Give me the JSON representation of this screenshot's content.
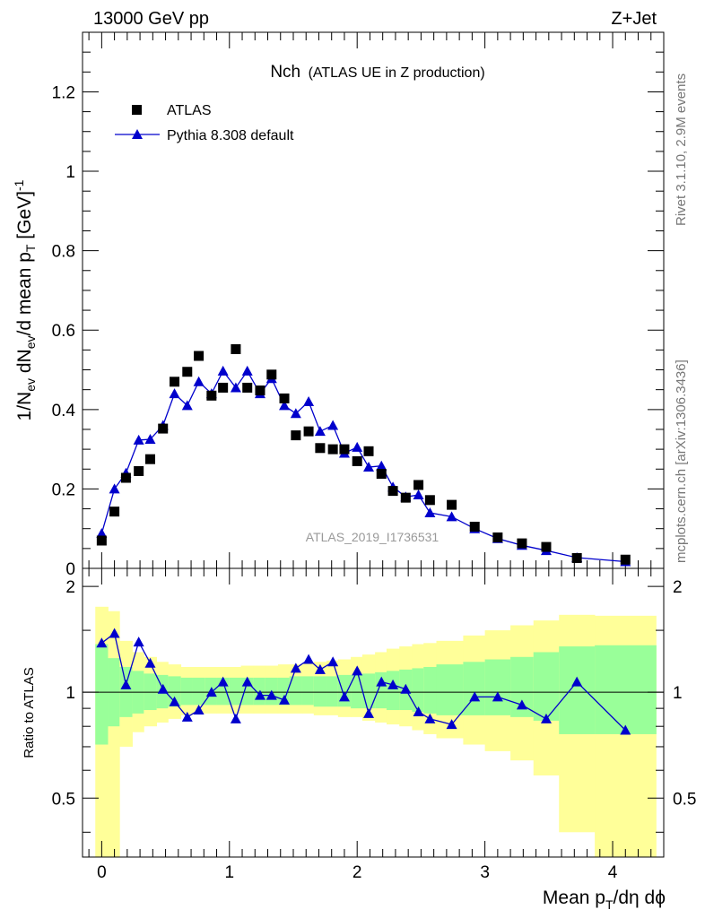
{
  "header": {
    "left": "13000 GeV pp",
    "right": "Z+Jet"
  },
  "side_labels": {
    "rivet": "Rivet 3.1.10,  2.9M events",
    "mcplots": "mcplots.cern.ch [arXiv:1306.3436]"
  },
  "reference_tag": "ATLAS_2019_I1736531",
  "colors": {
    "mc": "#0000cc",
    "data": "#000000",
    "band_inner": "#99ff99",
    "band_outer": "#ffff99"
  },
  "chart_data": [
    {
      "type": "scatter",
      "title_main": "Nch",
      "title_sub": "(ATLAS UE in Z production)",
      "xlabel": "Mean p_T/dη dφ",
      "ylabel": "1/N_ev dN_ev/d mean p_T [GeV]^-1",
      "xlim": [
        -0.15,
        4.4
      ],
      "ylim": [
        0,
        1.35
      ],
      "yticks": [
        0,
        0.2,
        0.4,
        0.6,
        0.8,
        1,
        1.2
      ],
      "ytick_labels": [
        "0",
        "0.2",
        "0.4",
        "0.6",
        "0.8",
        "1",
        "1.2"
      ],
      "legend_placement": "top-left",
      "series": [
        {
          "name": "ATLAS",
          "marker": "square",
          "x": [
            0.0,
            0.1,
            0.19,
            0.29,
            0.38,
            0.48,
            0.57,
            0.67,
            0.76,
            0.86,
            0.95,
            1.05,
            1.14,
            1.24,
            1.33,
            1.43,
            1.52,
            1.62,
            1.71,
            1.81,
            1.9,
            2.0,
            2.09,
            2.19,
            2.28,
            2.38,
            2.48,
            2.57,
            2.74,
            2.92,
            3.1,
            3.29,
            3.48,
            3.72,
            4.1
          ],
          "y": [
            0.07,
            0.143,
            0.228,
            0.245,
            0.275,
            0.352,
            0.47,
            0.495,
            0.535,
            0.435,
            0.455,
            0.552,
            0.455,
            0.448,
            0.488,
            0.428,
            0.335,
            0.345,
            0.303,
            0.3,
            0.3,
            0.27,
            0.295,
            0.238,
            0.195,
            0.178,
            0.21,
            0.172,
            0.16,
            0.105,
            0.078,
            0.063,
            0.054,
            0.026,
            0.022
          ]
        },
        {
          "name": "Pythia 8.308 default",
          "marker": "triangle",
          "x": [
            0.0,
            0.1,
            0.19,
            0.29,
            0.38,
            0.48,
            0.57,
            0.67,
            0.76,
            0.86,
            0.95,
            1.05,
            1.14,
            1.24,
            1.33,
            1.43,
            1.52,
            1.62,
            1.71,
            1.81,
            1.9,
            2.0,
            2.09,
            2.19,
            2.28,
            2.38,
            2.48,
            2.57,
            2.74,
            2.92,
            3.1,
            3.29,
            3.48,
            3.72,
            4.1
          ],
          "y": [
            0.088,
            0.2,
            0.24,
            0.323,
            0.325,
            0.36,
            0.44,
            0.41,
            0.47,
            0.44,
            0.497,
            0.455,
            0.497,
            0.44,
            0.478,
            0.41,
            0.39,
            0.42,
            0.345,
            0.36,
            0.29,
            0.305,
            0.255,
            0.258,
            0.205,
            0.18,
            0.185,
            0.14,
            0.13,
            0.1,
            0.075,
            0.058,
            0.045,
            0.027,
            0.017
          ]
        }
      ]
    },
    {
      "type": "line",
      "ylabel": "Ratio to ATLAS",
      "xlabel": "Mean p_T/dη dφ",
      "xlim": [
        -0.15,
        4.4
      ],
      "ylim": [
        0.34,
        2.25
      ],
      "yscale": "log",
      "yticks": [
        0.5,
        1,
        2
      ],
      "ytick_labels": [
        "0.5",
        "1",
        "2"
      ],
      "xticks": [
        0,
        1,
        2,
        3,
        4
      ],
      "xtick_labels": [
        "0",
        "1",
        "2",
        "3",
        "4"
      ],
      "reference_line": 1,
      "bins": [
        -0.05,
        0.05,
        0.14,
        0.24,
        0.33,
        0.43,
        0.52,
        0.62,
        0.71,
        0.81,
        0.9,
        1.0,
        1.09,
        1.19,
        1.28,
        1.38,
        1.47,
        1.57,
        1.66,
        1.76,
        1.85,
        1.95,
        2.04,
        2.14,
        2.23,
        2.33,
        2.43,
        2.52,
        2.62,
        2.83,
        3.0,
        3.2,
        3.38,
        3.58,
        3.86,
        4.34
      ],
      "band_inner_lo": [
        0.71,
        0.8,
        0.85,
        0.87,
        0.89,
        0.9,
        0.91,
        0.92,
        0.92,
        0.92,
        0.92,
        0.92,
        0.92,
        0.92,
        0.92,
        0.92,
        0.92,
        0.92,
        0.91,
        0.91,
        0.91,
        0.9,
        0.9,
        0.9,
        0.89,
        0.89,
        0.88,
        0.87,
        0.86,
        0.86,
        0.86,
        0.85,
        0.83,
        0.76,
        0.76
      ],
      "band_inner_hi": [
        1.37,
        1.25,
        1.18,
        1.15,
        1.13,
        1.12,
        1.11,
        1.1,
        1.1,
        1.1,
        1.1,
        1.1,
        1.1,
        1.1,
        1.1,
        1.1,
        1.11,
        1.11,
        1.11,
        1.11,
        1.12,
        1.12,
        1.13,
        1.14,
        1.15,
        1.16,
        1.17,
        1.18,
        1.2,
        1.22,
        1.24,
        1.26,
        1.3,
        1.35,
        1.36
      ],
      "band_outer_lo": [
        0.3,
        0.3,
        0.7,
        0.77,
        0.8,
        0.82,
        0.84,
        0.86,
        0.87,
        0.87,
        0.87,
        0.87,
        0.87,
        0.87,
        0.87,
        0.87,
        0.87,
        0.87,
        0.86,
        0.86,
        0.85,
        0.85,
        0.83,
        0.82,
        0.81,
        0.8,
        0.78,
        0.76,
        0.74,
        0.71,
        0.68,
        0.64,
        0.58,
        0.4,
        0.3
      ],
      "band_outer_hi": [
        1.75,
        1.7,
        1.4,
        1.3,
        1.26,
        1.22,
        1.2,
        1.18,
        1.18,
        1.18,
        1.18,
        1.18,
        1.19,
        1.19,
        1.19,
        1.2,
        1.2,
        1.21,
        1.22,
        1.23,
        1.24,
        1.26,
        1.28,
        1.3,
        1.33,
        1.35,
        1.37,
        1.38,
        1.4,
        1.45,
        1.5,
        1.55,
        1.6,
        1.66,
        1.65
      ],
      "series": [
        {
          "name": "Pythia 8.308 default",
          "x": [
            0.0,
            0.1,
            0.19,
            0.29,
            0.38,
            0.48,
            0.57,
            0.67,
            0.76,
            0.86,
            0.95,
            1.05,
            1.14,
            1.24,
            1.33,
            1.43,
            1.52,
            1.62,
            1.71,
            1.81,
            1.9,
            2.0,
            2.09,
            2.19,
            2.28,
            2.38,
            2.48,
            2.57,
            2.74,
            2.92,
            3.1,
            3.29,
            3.48,
            3.72,
            4.1
          ],
          "y": [
            1.38,
            1.47,
            1.05,
            1.39,
            1.21,
            1.02,
            0.94,
            0.85,
            0.89,
            1.0,
            1.07,
            0.84,
            1.07,
            0.98,
            0.98,
            0.95,
            1.17,
            1.24,
            1.16,
            1.22,
            0.97,
            1.15,
            0.87,
            1.07,
            1.05,
            1.02,
            0.88,
            0.84,
            0.81,
            0.97,
            0.97,
            0.92,
            0.84,
            1.07,
            0.78
          ]
        }
      ]
    }
  ]
}
